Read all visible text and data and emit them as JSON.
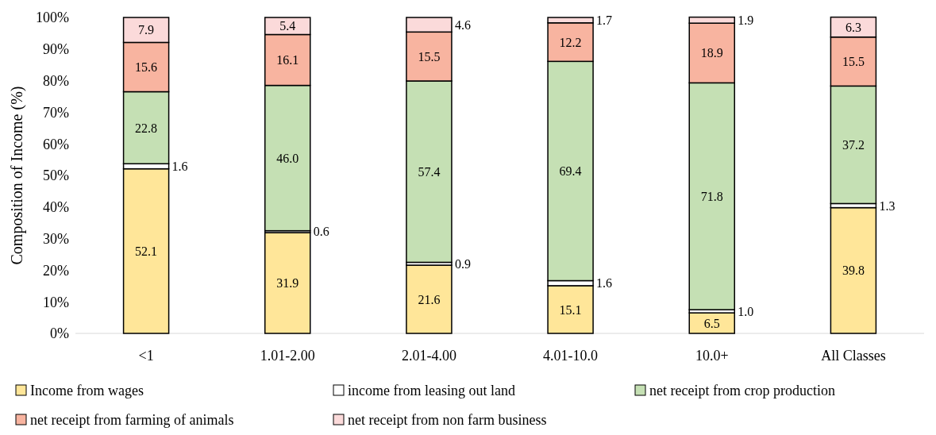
{
  "chart_data": {
    "type": "bar",
    "stacked": true,
    "ylabel": "Composition of Income (%)",
    "categories": [
      "<1",
      "1.01-2.00",
      "2.01-4.00",
      "4.01-10.0",
      "10.0+",
      "All Classes"
    ],
    "ylim": [
      0,
      100
    ],
    "yticks": [
      {
        "value": 0,
        "label": "0%"
      },
      {
        "value": 10,
        "label": "10%"
      },
      {
        "value": 20,
        "label": "20%"
      },
      {
        "value": 30,
        "label": "30%"
      },
      {
        "value": 40,
        "label": "40%"
      },
      {
        "value": 50,
        "label": "50%"
      },
      {
        "value": 60,
        "label": "60%"
      },
      {
        "value": 70,
        "label": "70%"
      },
      {
        "value": 80,
        "label": "80%"
      },
      {
        "value": 90,
        "label": "90%"
      },
      {
        "value": 100,
        "label": "100%"
      }
    ],
    "grid": false,
    "legend": "bottom",
    "series": [
      {
        "name": "Income from wages",
        "color": "#ffe699",
        "values": [
          52.1,
          31.9,
          21.6,
          15.1,
          6.5,
          39.8
        ],
        "value_labels": [
          "52.1",
          "31.9",
          "21.6",
          "15.1",
          "6.5",
          "39.8"
        ]
      },
      {
        "name": "income from leasing out land",
        "color": "#ffffff",
        "values": [
          1.6,
          0.6,
          0.9,
          1.6,
          1.0,
          1.3
        ],
        "value_labels": [
          "1.6",
          "0.6",
          "0.9",
          "1.6",
          "1.0",
          "1.3"
        ]
      },
      {
        "name": "net receipt from crop production",
        "color": "#c5e0b4",
        "values": [
          22.8,
          46.0,
          57.4,
          69.4,
          71.8,
          37.2
        ],
        "value_labels": [
          "22.8",
          "46.0",
          "57.4",
          "69.4",
          "71.8",
          "37.2"
        ]
      },
      {
        "name": "net receipt from farming of animals",
        "color": "#f8b4a0",
        "values": [
          15.6,
          16.1,
          15.5,
          12.2,
          18.9,
          15.5
        ],
        "value_labels": [
          "15.6",
          "16.1",
          "15.5",
          "12.2",
          "18.9",
          "15.5"
        ]
      },
      {
        "name": "net receipt from non farm business",
        "color": "#fbdada",
        "values": [
          7.9,
          5.4,
          4.6,
          1.7,
          1.9,
          6.3
        ],
        "value_labels": [
          "7.9",
          "5.4",
          "4.6",
          "1.7",
          "1.9",
          "6.3"
        ]
      }
    ]
  }
}
